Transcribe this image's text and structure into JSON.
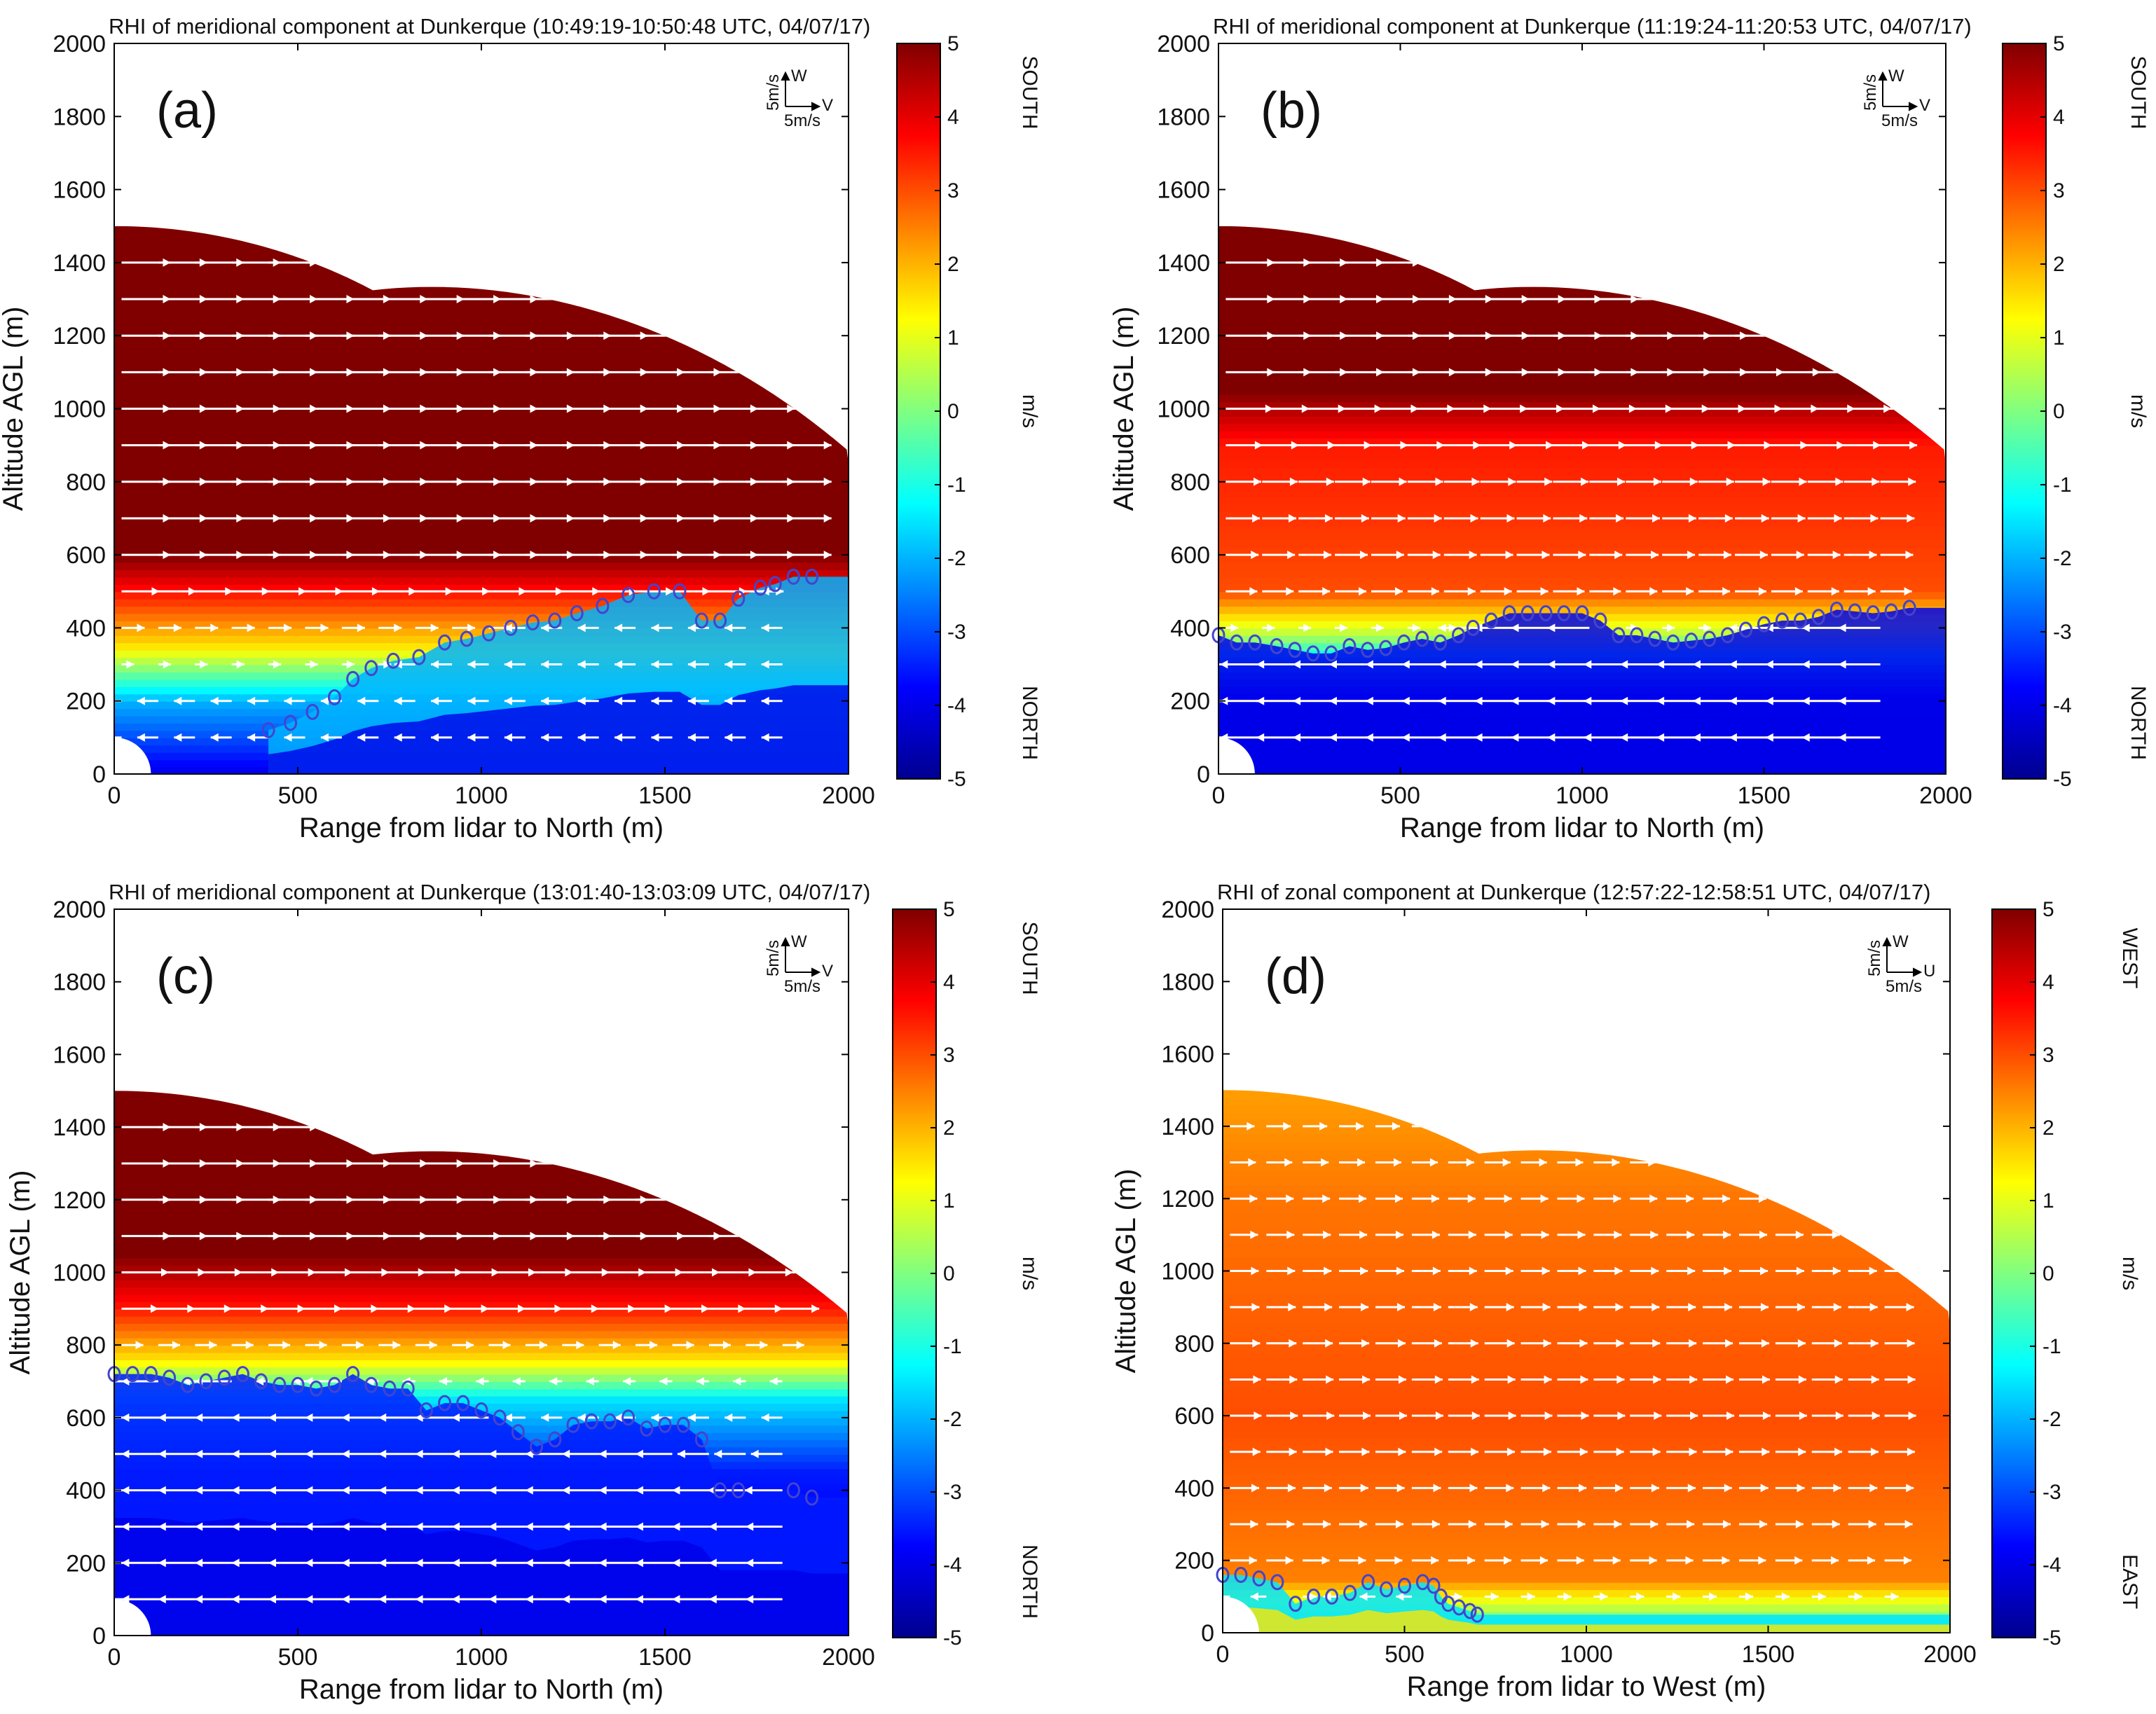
{
  "colors": {
    "colormap": [
      "#00008f",
      "#0000ff",
      "#0080ff",
      "#00ffff",
      "#80ff80",
      "#ffff00",
      "#ff8000",
      "#ff0000",
      "#800000"
    ],
    "marker": "#4444cc",
    "arrow": "#ffffff",
    "frame": "#000000"
  },
  "chart_data": [
    {
      "type": "heatmap",
      "panel": "a",
      "letter": "(a)",
      "title": "RHI of meridional component at Dunkerque (10:49:19-10:50:48 UTC, 04/07/17)",
      "xlabel": "Range from lidar to North (m)",
      "ylabel": "Altitude AGL (m)",
      "xlim": [
        0,
        2000
      ],
      "ylim": [
        0,
        2000
      ],
      "xticks": [
        "0",
        "500",
        "1000",
        "1500",
        "2000"
      ],
      "yticks": [
        "0",
        "200",
        "400",
        "600",
        "800",
        "1000",
        "1200",
        "1400",
        "1600",
        "1800",
        "2000"
      ],
      "colorbar": {
        "ticks": [
          "5",
          "4",
          "3",
          "2",
          "1",
          "0",
          "-1",
          "-2",
          "-3",
          "-4",
          "-5"
        ],
        "range": [
          -5,
          5
        ],
        "unit": "m/s",
        "top_label": "SOUTH",
        "bottom_label": "NORTH"
      },
      "legend": {
        "up": "W",
        "right": "V",
        "up_scale": "5m/s",
        "right_scale": "5m/s"
      },
      "profile": [
        [
          0,
          -4
        ],
        [
          200,
          -2
        ],
        [
          350,
          1.5
        ],
        [
          600,
          5
        ],
        [
          1100,
          5
        ]
      ],
      "boundary": [
        [
          420,
          120
        ],
        [
          480,
          140
        ],
        [
          540,
          170
        ],
        [
          600,
          210
        ],
        [
          650,
          260
        ],
        [
          700,
          290
        ],
        [
          760,
          310
        ],
        [
          830,
          320
        ],
        [
          900,
          360
        ],
        [
          960,
          370
        ],
        [
          1020,
          385
        ],
        [
          1080,
          400
        ],
        [
          1140,
          415
        ],
        [
          1200,
          420
        ],
        [
          1260,
          440
        ],
        [
          1330,
          460
        ],
        [
          1400,
          490
        ],
        [
          1470,
          500
        ],
        [
          1540,
          500
        ],
        [
          1600,
          420
        ],
        [
          1650,
          420
        ],
        [
          1700,
          480
        ],
        [
          1760,
          510
        ],
        [
          1800,
          520
        ],
        [
          1850,
          540
        ],
        [
          1900,
          540
        ]
      ],
      "boundary_vals": [
        -2,
        -4
      ],
      "gap_note": "white stripe near 500 m"
    },
    {
      "type": "heatmap",
      "panel": "b",
      "letter": "(b)",
      "title": "RHI of meridional component at Dunkerque (11:19:24-11:20:53 UTC, 04/07/17)",
      "xlabel": "Range from lidar to North (m)",
      "ylabel": "Altitude AGL (m)",
      "xlim": [
        0,
        2000
      ],
      "ylim": [
        0,
        2000
      ],
      "xticks": [
        "0",
        "500",
        "1000",
        "1500",
        "2000"
      ],
      "yticks": [
        "0",
        "200",
        "400",
        "600",
        "800",
        "1000",
        "1200",
        "1400",
        "1600",
        "1800",
        "2000"
      ],
      "colorbar": {
        "ticks": [
          "5",
          "4",
          "3",
          "2",
          "1",
          "0",
          "-1",
          "-2",
          "-3",
          "-4",
          "-5"
        ],
        "range": [
          -5,
          5
        ],
        "unit": "m/s",
        "top_label": "SOUTH",
        "bottom_label": "NORTH"
      },
      "legend": {
        "up": "W",
        "right": "V",
        "up_scale": "5m/s",
        "right_scale": "5m/s"
      },
      "profile": [
        [
          0,
          -4.5
        ],
        [
          200,
          -4
        ],
        [
          300,
          -2
        ],
        [
          380,
          0.5
        ],
        [
          500,
          3
        ],
        [
          900,
          3.5
        ],
        [
          1050,
          5
        ]
      ],
      "boundary": [
        [
          0,
          380
        ],
        [
          50,
          360
        ],
        [
          100,
          360
        ],
        [
          160,
          350
        ],
        [
          210,
          340
        ],
        [
          260,
          330
        ],
        [
          310,
          330
        ],
        [
          360,
          350
        ],
        [
          410,
          340
        ],
        [
          460,
          345
        ],
        [
          510,
          360
        ],
        [
          560,
          370
        ],
        [
          610,
          360
        ],
        [
          660,
          380
        ],
        [
          700,
          400
        ],
        [
          750,
          420
        ],
        [
          800,
          440
        ],
        [
          850,
          440
        ],
        [
          900,
          440
        ],
        [
          950,
          440
        ],
        [
          1000,
          440
        ],
        [
          1050,
          420
        ],
        [
          1100,
          380
        ],
        [
          1150,
          380
        ],
        [
          1200,
          370
        ],
        [
          1250,
          360
        ],
        [
          1300,
          365
        ],
        [
          1350,
          370
        ],
        [
          1400,
          380
        ],
        [
          1450,
          395
        ],
        [
          1500,
          410
        ],
        [
          1550,
          420
        ],
        [
          1600,
          420
        ],
        [
          1650,
          430
        ],
        [
          1700,
          450
        ],
        [
          1750,
          445
        ],
        [
          1800,
          440
        ],
        [
          1850,
          445
        ],
        [
          1900,
          455
        ]
      ],
      "boundary_vals": [
        -4,
        -4
      ]
    },
    {
      "type": "heatmap",
      "panel": "c",
      "letter": "(c)",
      "title": "RHI of meridional component at Dunkerque (13:01:40-13:03:09 UTC, 04/07/17)",
      "xlabel": "Range from lidar to North (m)",
      "ylabel": "Altitude AGL (m)",
      "xlim": [
        0,
        2000
      ],
      "ylim": [
        0,
        2000
      ],
      "xticks": [
        "0",
        "500",
        "1000",
        "1500",
        "2000"
      ],
      "yticks": [
        "0",
        "200",
        "400",
        "600",
        "800",
        "1000",
        "1200",
        "1400",
        "1600",
        "1800",
        "2000"
      ],
      "colorbar": {
        "ticks": [
          "5",
          "4",
          "3",
          "2",
          "1",
          "0",
          "-1",
          "-2",
          "-3",
          "-4",
          "-5"
        ],
        "range": [
          -5,
          5
        ],
        "unit": "m/s",
        "top_label": "SOUTH",
        "bottom_label": "NORTH"
      },
      "legend": {
        "up": "W",
        "right": "V",
        "up_scale": "5m/s",
        "right_scale": "5m/s"
      },
      "profile": [
        [
          0,
          -4.5
        ],
        [
          200,
          -4
        ],
        [
          450,
          -3.5
        ],
        [
          650,
          -1.5
        ],
        [
          760,
          1.5
        ],
        [
          900,
          3.5
        ],
        [
          1050,
          5
        ]
      ],
      "boundary": [
        [
          0,
          720
        ],
        [
          50,
          720
        ],
        [
          100,
          720
        ],
        [
          150,
          710
        ],
        [
          200,
          690
        ],
        [
          250,
          700
        ],
        [
          300,
          710
        ],
        [
          350,
          720
        ],
        [
          400,
          700
        ],
        [
          450,
          690
        ],
        [
          500,
          690
        ],
        [
          550,
          680
        ],
        [
          600,
          690
        ],
        [
          650,
          720
        ],
        [
          700,
          690
        ],
        [
          750,
          680
        ],
        [
          800,
          680
        ],
        [
          850,
          620
        ],
        [
          900,
          640
        ],
        [
          950,
          640
        ],
        [
          1000,
          620
        ],
        [
          1050,
          600
        ],
        [
          1100,
          560
        ],
        [
          1150,
          520
        ],
        [
          1200,
          540
        ],
        [
          1250,
          580
        ],
        [
          1300,
          590
        ],
        [
          1350,
          590
        ],
        [
          1400,
          600
        ],
        [
          1450,
          570
        ],
        [
          1500,
          580
        ],
        [
          1550,
          580
        ],
        [
          1600,
          540
        ],
        [
          1650,
          400
        ],
        [
          1700,
          400
        ],
        [
          1850,
          400
        ],
        [
          1900,
          380
        ]
      ],
      "boundary_vals": [
        -3.5,
        -4
      ],
      "gap_note": "white patch near 1800 m"
    },
    {
      "type": "heatmap",
      "panel": "d",
      "letter": "(d)",
      "title": "RHI of zonal component at Dunkerque (12:57:22-12:58:51 UTC, 04/07/17)",
      "xlabel": "Range from lidar to West (m)",
      "ylabel": "Altitude AGL (m)",
      "xlim": [
        0,
        2000
      ],
      "ylim": [
        0,
        2000
      ],
      "xticks": [
        "0",
        "500",
        "1000",
        "1500",
        "2000"
      ],
      "yticks": [
        "0",
        "200",
        "400",
        "600",
        "800",
        "1000",
        "1200",
        "1400",
        "1600",
        "1800",
        "2000"
      ],
      "colorbar": {
        "ticks": [
          "5",
          "4",
          "3",
          "2",
          "1",
          "0",
          "-1",
          "-2",
          "-3",
          "-4",
          "-5"
        ],
        "range": [
          -5,
          5
        ],
        "unit": "m/s",
        "top_label": "WEST",
        "bottom_label": "EAST"
      },
      "legend": {
        "up": "W",
        "right": "U",
        "up_scale": "5m/s",
        "right_scale": "5m/s"
      },
      "profile": [
        [
          0,
          -1
        ],
        [
          150,
          2.5
        ],
        [
          600,
          3
        ],
        [
          1200,
          2.6
        ],
        [
          1500,
          2.2
        ]
      ],
      "boundary": [
        [
          0,
          160
        ],
        [
          50,
          160
        ],
        [
          100,
          150
        ],
        [
          150,
          140
        ],
        [
          200,
          80
        ],
        [
          250,
          100
        ],
        [
          300,
          100
        ],
        [
          350,
          110
        ],
        [
          400,
          140
        ],
        [
          450,
          120
        ],
        [
          500,
          130
        ],
        [
          550,
          140
        ],
        [
          580,
          130
        ],
        [
          600,
          100
        ],
        [
          620,
          80
        ],
        [
          650,
          70
        ],
        [
          680,
          60
        ],
        [
          700,
          50
        ]
      ],
      "boundary_vals": [
        -1.5,
        1.5
      ]
    }
  ]
}
